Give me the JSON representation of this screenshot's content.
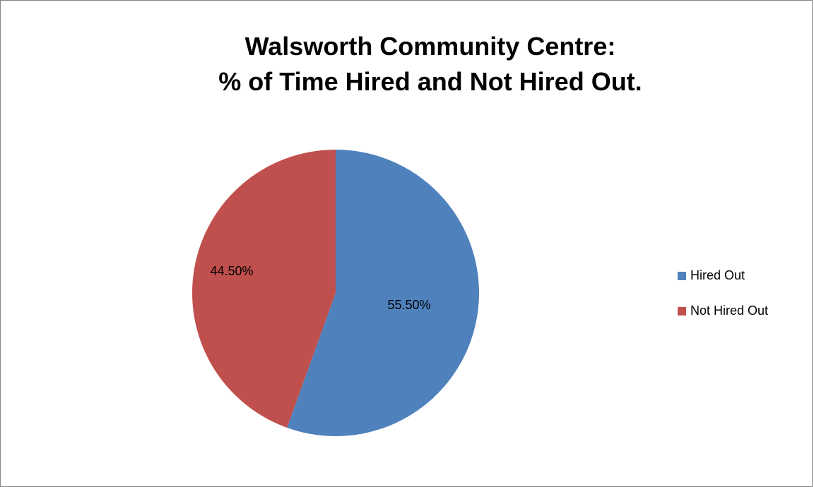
{
  "chart_data": {
    "type": "pie",
    "title_lines": [
      "Walsworth Community Centre:",
      "% of Time Hired and Not Hired Out."
    ],
    "categories": [
      "Hired Out",
      "Not Hired Out"
    ],
    "values": [
      55.5,
      44.5
    ],
    "data_labels": [
      "55.50%",
      "44.50%"
    ],
    "colors": [
      "#4F81BD",
      "#C0504D"
    ],
    "legend_position": "right",
    "start_angle": "12 o'clock",
    "direction": "clockwise"
  }
}
